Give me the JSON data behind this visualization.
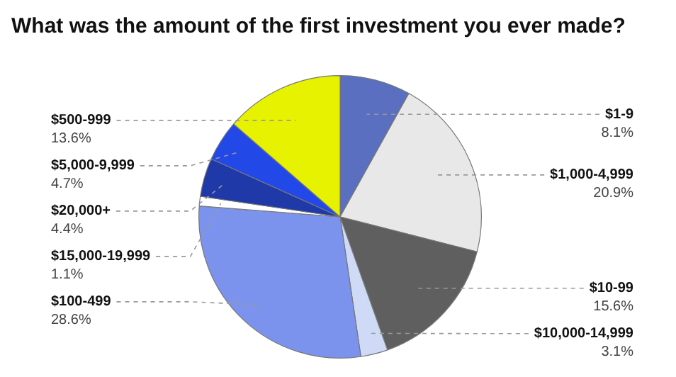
{
  "chart_data": {
    "type": "pie",
    "title": "What was the amount of the first investment you ever made?",
    "categories": [
      "$1-9",
      "$1,000-4,999",
      "$10-99",
      "$10,000-14,999",
      "$100-499",
      "$15,000-19,999",
      "$20,000+",
      "$5,000-9,999",
      "$500-999"
    ],
    "values": [
      8.1,
      20.9,
      15.6,
      3.1,
      28.6,
      1.1,
      4.4,
      4.7,
      13.6
    ],
    "value_labels": [
      "8.1%",
      "20.9%",
      "15.6%",
      "3.1%",
      "28.6%",
      "1.1%",
      "4.4%",
      "4.7%",
      "13.6%"
    ],
    "colors": [
      "#5a6fbf",
      "#e8e8e8",
      "#5f5f5f",
      "#cfdaf7",
      "#7b93ec",
      "#ffffff",
      "#1f3aa8",
      "#2348e8",
      "#e6f200"
    ],
    "legend": false
  }
}
